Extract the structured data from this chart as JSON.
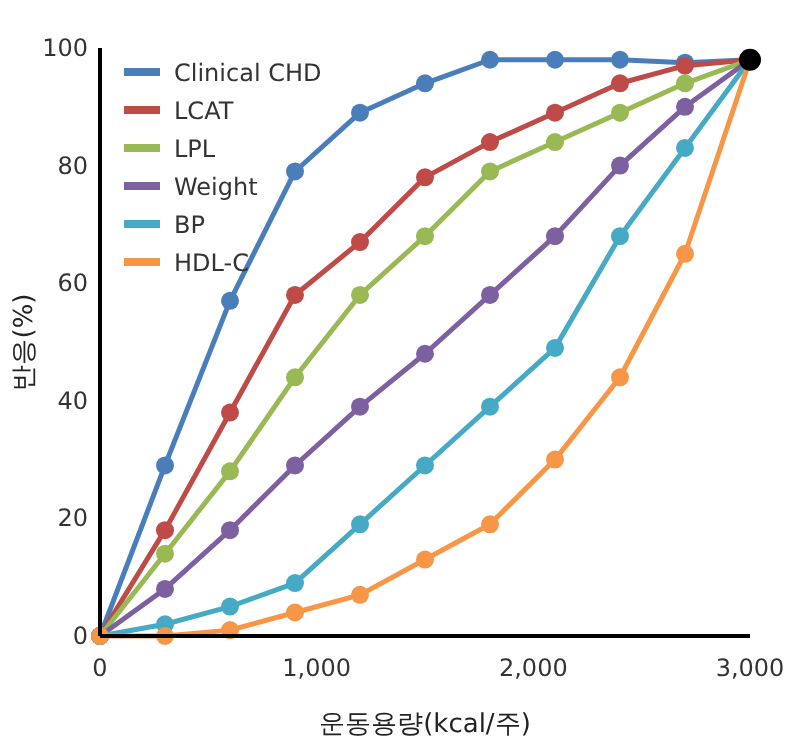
{
  "chart_data": {
    "type": "line",
    "xlabel": "운동용량(kcal/주)",
    "ylabel": "반응(%)",
    "x": [
      0,
      300,
      600,
      900,
      1200,
      1500,
      1800,
      2100,
      2400,
      2700,
      3000
    ],
    "xlim": [
      0,
      3000
    ],
    "xticks": [
      0,
      {
        "value": 1000,
        "label": "1,000"
      },
      {
        "value": 2000,
        "label": "2,000"
      },
      {
        "value": 3000,
        "label": "3,000"
      }
    ],
    "ylim": [
      0,
      100
    ],
    "yticks": [
      0,
      20,
      40,
      60,
      80,
      100
    ],
    "marker": "circle",
    "line_style": "solid",
    "legend": "top left",
    "grid": false,
    "series": [
      {
        "name": "Clinical CHD",
        "color": "#4a7ebb",
        "values": [
          0,
          29,
          57,
          79,
          89,
          94,
          98,
          98,
          98,
          97.5,
          98
        ]
      },
      {
        "name": "LCAT",
        "color": "#be4b48",
        "values": [
          0,
          18,
          38,
          58,
          67,
          78,
          84,
          89,
          94,
          97,
          98
        ]
      },
      {
        "name": "LPL",
        "color": "#98b954",
        "values": [
          0,
          14,
          28,
          44,
          58,
          68,
          79,
          84,
          89,
          94,
          98
        ]
      },
      {
        "name": "Weight",
        "color": "#7d60a0",
        "values": [
          0,
          8,
          18,
          29,
          39,
          48,
          58,
          68,
          80,
          90,
          98
        ]
      },
      {
        "name": "BP",
        "color": "#46aac5",
        "values": [
          0,
          2,
          5,
          9,
          19,
          29,
          39,
          49,
          68,
          83,
          98
        ]
      },
      {
        "name": "HDL-C",
        "color": "#f79646",
        "values": [
          0,
          0,
          1,
          4,
          7,
          13,
          19,
          30,
          44,
          65,
          98
        ]
      },
      {
        "type": "scatter",
        "color": "#000000",
        "x": [
          3000
        ],
        "values": [
          98
        ]
      }
    ]
  }
}
